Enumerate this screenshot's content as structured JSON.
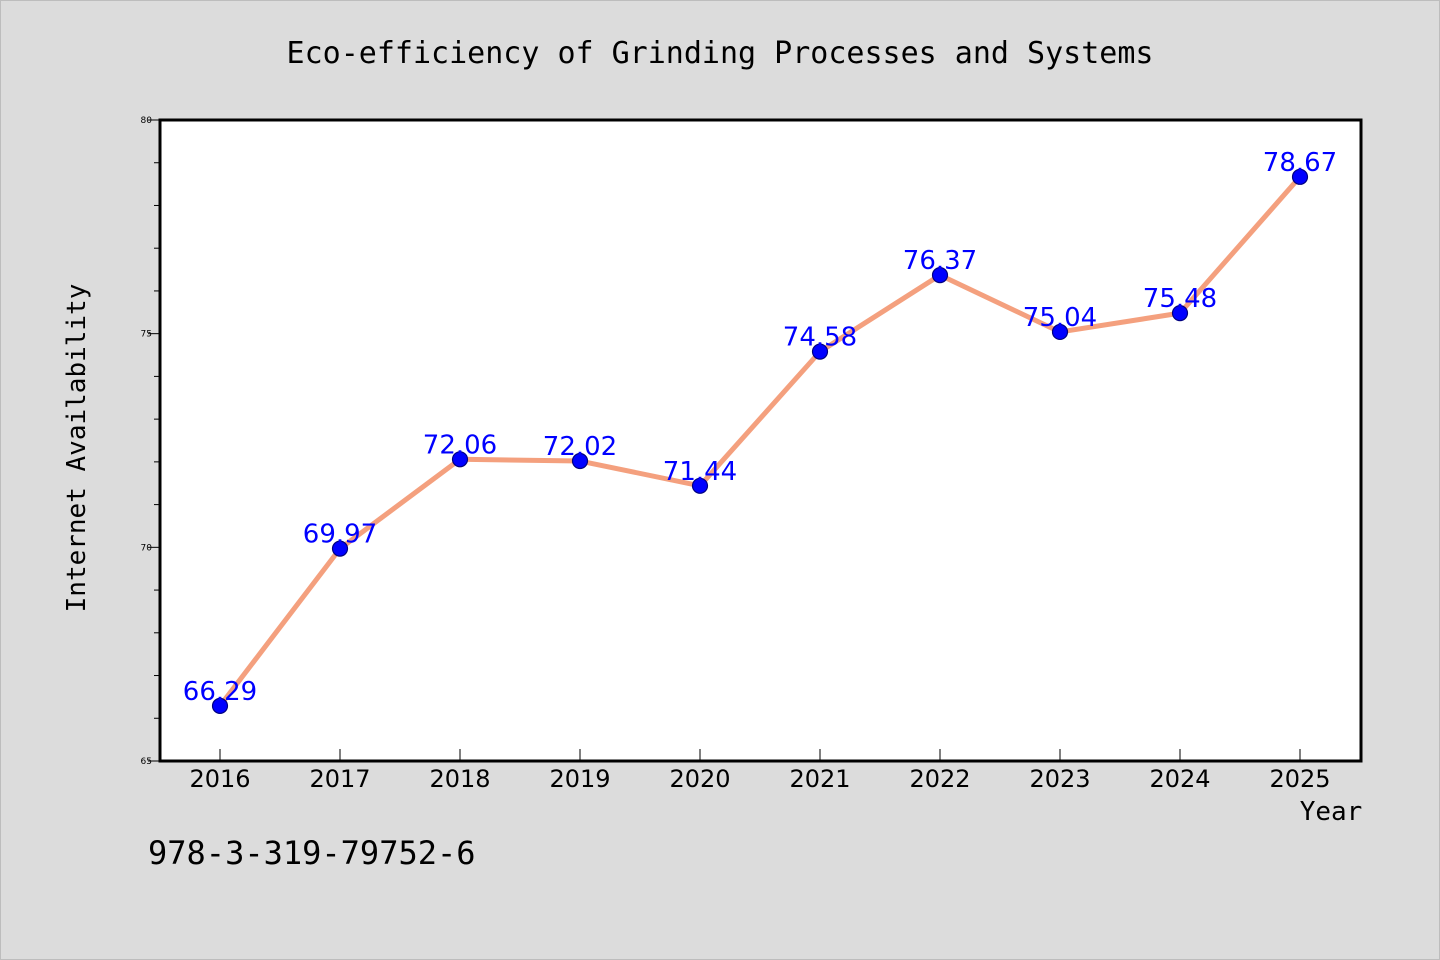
{
  "chart_data": {
    "type": "line",
    "title": "Eco-efficiency of Grinding Processes and Systems",
    "xlabel": "Year",
    "ylabel": "Internet Availability",
    "categories": [
      "2016",
      "2017",
      "2018",
      "2019",
      "2020",
      "2021",
      "2022",
      "2023",
      "2024",
      "2025"
    ],
    "series": [
      {
        "values": [
          66.29,
          69.97,
          72.06,
          72.02,
          71.44,
          74.58,
          76.37,
          75.04,
          75.48,
          78.67
        ]
      }
    ],
    "data_labels": [
      "66.29",
      "69.97",
      "72.06",
      "72.02",
      "71.44",
      "74.58",
      "76.37",
      "75.04",
      "75.48",
      "78.67"
    ],
    "ylim": [
      65,
      80
    ],
    "yticks": [
      65,
      70,
      75,
      80
    ],
    "ytick_labels": [
      "65",
      "70",
      "75",
      "80"
    ],
    "grid": false,
    "legend": "none",
    "annotation": "978-3-319-79752-6",
    "colors": {
      "background": "#dcdcdc",
      "plot_background": "#ffffff",
      "line": "#f4a07e",
      "marker_fill": "#0000ff",
      "marker_edge": "#000080",
      "data_label": "#0000ff"
    }
  }
}
